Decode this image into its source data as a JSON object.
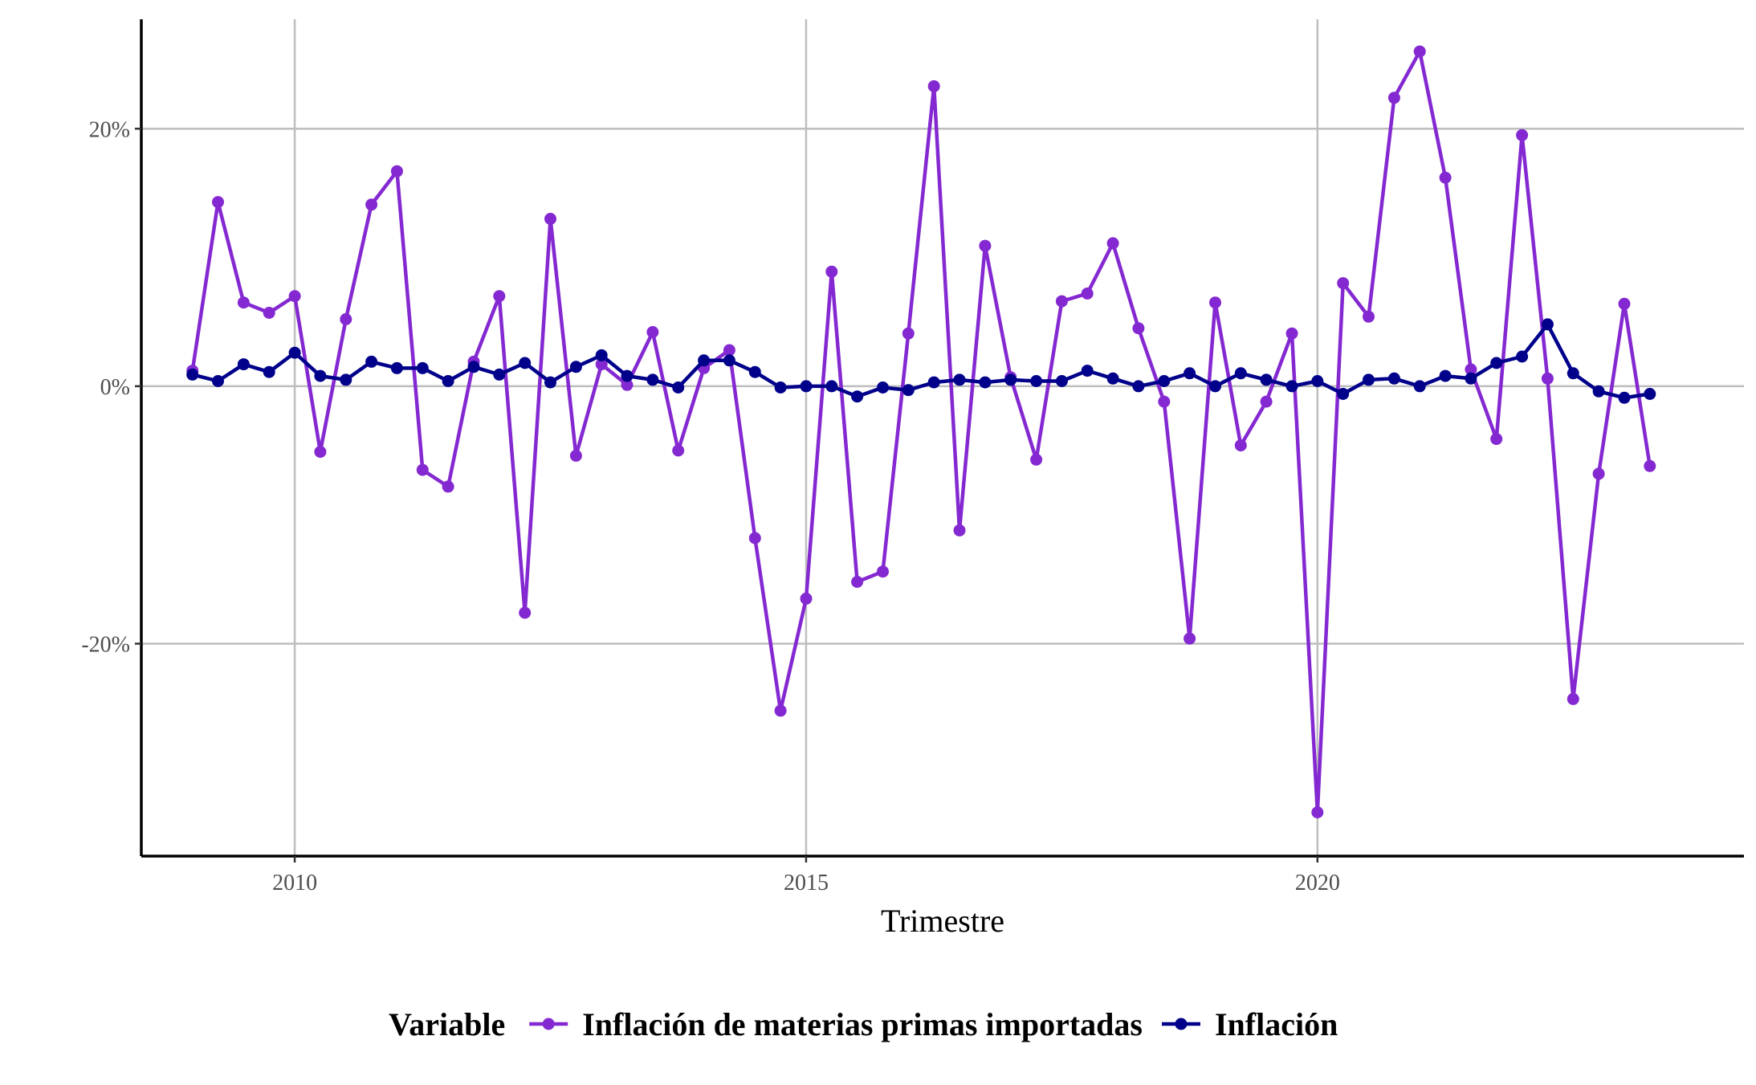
{
  "chart_data": {
    "type": "line",
    "title": "",
    "xlabel": "Trimestre",
    "ylabel": "",
    "xlim": [
      2008.5,
      2024.17
    ],
    "ylim": [
      -36.5,
      28.5
    ],
    "grid": true,
    "x_ticks": [
      {
        "value": 2010,
        "label": "2010"
      },
      {
        "value": 2015,
        "label": "2015"
      },
      {
        "value": 2020,
        "label": "2020"
      }
    ],
    "y_ticks": [
      {
        "value": 20,
        "label": "20%"
      },
      {
        "value": 0,
        "label": "0%"
      },
      {
        "value": -20,
        "label": "-20%"
      }
    ],
    "x": [
      2009.0,
      2009.25,
      2009.5,
      2009.75,
      2010.0,
      2010.25,
      2010.5,
      2010.75,
      2011.0,
      2011.25,
      2011.5,
      2011.75,
      2012.0,
      2012.25,
      2012.5,
      2012.75,
      2013.0,
      2013.25,
      2013.5,
      2013.75,
      2014.0,
      2014.25,
      2014.5,
      2014.75,
      2015.0,
      2015.25,
      2015.5,
      2015.75,
      2016.0,
      2016.25,
      2016.5,
      2016.75,
      2017.0,
      2017.25,
      2017.5,
      2017.75,
      2018.0,
      2018.25,
      2018.5,
      2018.75,
      2019.0,
      2019.25,
      2019.5,
      2019.75,
      2020.0,
      2020.25,
      2020.5,
      2020.75,
      2021.0,
      2021.25,
      2021.5,
      2021.75,
      2022.0,
      2022.25,
      2022.5,
      2022.75,
      2023.0,
      2023.25,
      2023.5
    ],
    "legend": {
      "title": "Variable",
      "position": "bottom"
    },
    "series": [
      {
        "name": "Inflación de materias primas importadas",
        "color": "#8429D1",
        "values": [
          1.2,
          14.3,
          6.5,
          5.7,
          7.0,
          -5.1,
          5.2,
          14.1,
          16.7,
          -6.5,
          -7.8,
          1.9,
          7.0,
          -17.6,
          13.0,
          -5.4,
          1.7,
          0.1,
          4.2,
          -5.0,
          1.4,
          2.8,
          -11.8,
          -25.2,
          -16.5,
          8.9,
          -15.2,
          -14.4,
          4.1,
          23.3,
          -11.2,
          10.9,
          0.7,
          -5.7,
          6.6,
          7.2,
          11.1,
          4.5,
          -1.2,
          -19.6,
          6.5,
          -4.6,
          -1.2,
          4.1,
          -33.1,
          8.0,
          5.4,
          22.4,
          26.0,
          16.2,
          1.3,
          -4.1,
          19.5,
          0.6,
          -24.3,
          -6.8,
          6.4,
          -6.2,
          null
        ]
      },
      {
        "name": "Inflación",
        "color": "#00008B",
        "values": [
          0.9,
          0.4,
          1.7,
          1.1,
          2.6,
          0.8,
          0.5,
          1.9,
          1.4,
          1.4,
          0.4,
          1.5,
          0.9,
          1.8,
          0.3,
          1.5,
          2.4,
          0.8,
          0.5,
          -0.1,
          2.0,
          2.0,
          1.1,
          -0.1,
          0.0,
          0.0,
          -0.8,
          -0.1,
          -0.3,
          0.3,
          0.5,
          0.3,
          0.5,
          0.4,
          0.4,
          1.2,
          0.6,
          0.0,
          0.4,
          1.0,
          0.0,
          1.0,
          0.5,
          0.0,
          0.4,
          -0.6,
          0.5,
          0.6,
          0.0,
          0.8,
          0.6,
          1.8,
          2.3,
          4.8,
          1.0,
          -0.4,
          -0.9,
          -0.6,
          null
        ]
      }
    ]
  }
}
